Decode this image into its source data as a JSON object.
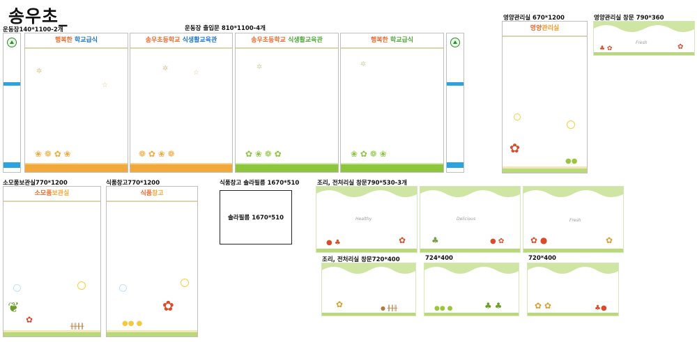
{
  "page_title": "송우초_",
  "captions": {
    "playground_side": "운동장140*1100-2개",
    "playground_entrance": "운동장 출입문 810*1100-4개",
    "nutrition_room": "영양관리실 670*1200",
    "nutrition_window": "영양관리실 창문 790*360",
    "consumables_room": "소모품보관실770*1200",
    "food_storage": "식품창고770*1200",
    "food_storage_film": "식품창고 솔라필름 1670*510",
    "cooking_window_790": "조리, 전처리실 창문790*530-3개",
    "cooking_window_720": "조리, 전처리실 창문720*400",
    "window_724": "724*400",
    "window_720": "720*400"
  },
  "film_label": "솔라필름 1670*510",
  "entrance_panels": [
    {
      "part1": "행복한 ",
      "part2": "학교급식"
    },
    {
      "part1": "송우초등학교 ",
      "part2": "식생활교육관"
    },
    {
      "part1": "송우초등학교 ",
      "part2": "식생활교육관"
    },
    {
      "part1": "행복한 ",
      "part2": "학교급식"
    }
  ],
  "room_signs": {
    "nutrition": {
      "part1": "영양",
      "part2": "관리실"
    },
    "consumables": {
      "part1": "소모품",
      "part2": "보관실"
    },
    "food_storage": {
      "part1": "식품",
      "part2": "창고"
    }
  },
  "window_scripts": {
    "w1": "Healthy",
    "w2": "Delicious",
    "w3": "Fresh",
    "nut": "Fresh"
  },
  "colors": {
    "orange": "#f2a93b",
    "green": "#8cc63f",
    "blue": "#2aa4de",
    "sign_orange": "#ef6a2a",
    "sign_blue": "#1f76c9"
  }
}
